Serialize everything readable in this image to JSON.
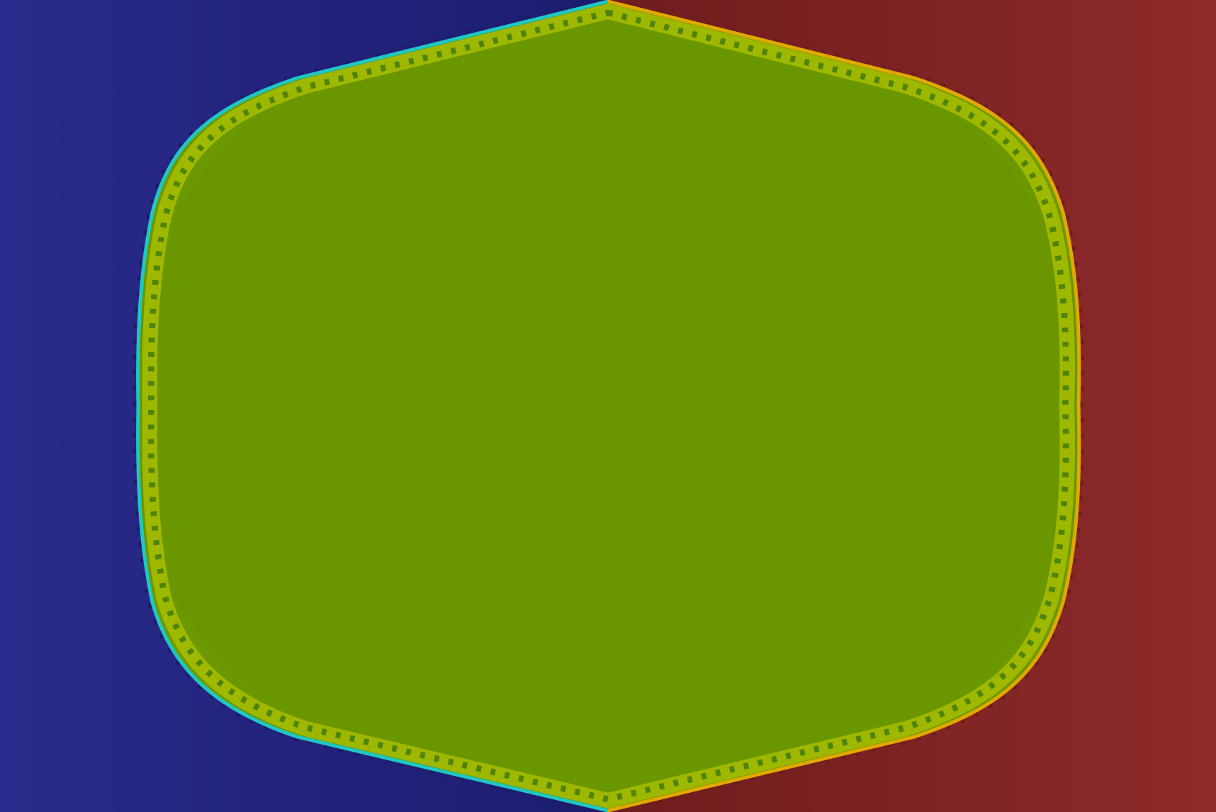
{
  "colors": {
    "left_region": "#2a2a8c",
    "left_region_dark": "#1c1c6e",
    "right_region": "#8e2a2a",
    "right_region_dark": "#6e1c1c",
    "center_region": "#6a9600",
    "center_region_light": "#72a000",
    "boundary_left": "#1fc7c2",
    "boundary_right": "#e0a800",
    "boundary_inner_ring": "#c8d400",
    "boundary_inner_dark": "#2e6e10"
  }
}
